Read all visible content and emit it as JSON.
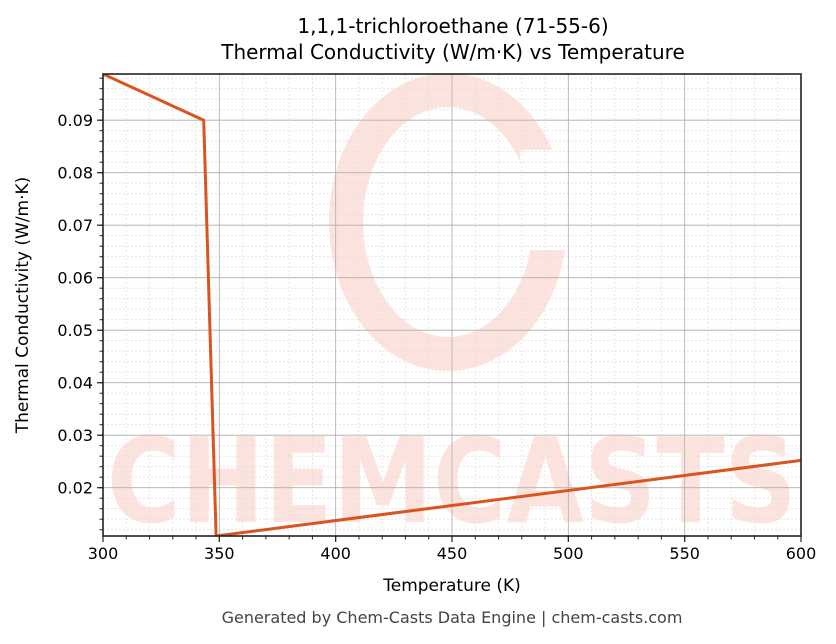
{
  "chart_data": {
    "type": "line",
    "title": "1,1,1-trichloroethane (71-55-6)",
    "subtitle": "Thermal Conductivity (W/m·K) vs Temperature",
    "xlabel": "Temperature (K)",
    "ylabel": "Thermal Conductivity (W/m·K)",
    "xlim": [
      300,
      600
    ],
    "ylim": [
      0.0108,
      0.0988
    ],
    "x_ticks": [
      300,
      350,
      400,
      450,
      500,
      550,
      600
    ],
    "y_ticks": [
      0.02,
      0.03,
      0.04,
      0.05,
      0.06,
      0.07,
      0.08,
      0.09
    ],
    "grid": true,
    "legend": null,
    "series": [
      {
        "name": "Thermal Conductivity",
        "color": "#d9541e",
        "x": [
          300,
          343.3,
          348.6,
          600
        ],
        "y": [
          0.0988,
          0.09,
          0.0108,
          0.0252
        ]
      }
    ],
    "watermark": "CHEMCASTS"
  },
  "labels": {
    "title": "1,1,1-trichloroethane (71-55-6)",
    "subtitle": "Thermal Conductivity (W/m·K) vs Temperature",
    "xlabel": "Temperature (K)",
    "ylabel": "Thermal Conductivity (W/m·K)",
    "footer": "Generated by Chem-Casts Data Engine | chem-casts.com",
    "x_tick_labels": [
      "300",
      "350",
      "400",
      "450",
      "500",
      "550",
      "600"
    ],
    "y_tick_labels": [
      "0.02",
      "0.03",
      "0.04",
      "0.05",
      "0.06",
      "0.07",
      "0.08",
      "0.09"
    ],
    "watermark": "CHEMCASTS"
  },
  "colors": {
    "line": "#d9541e",
    "watermark": "#fde3dd",
    "grid_major": "#b0b0b0",
    "grid_minor": "#e0e0e0"
  }
}
